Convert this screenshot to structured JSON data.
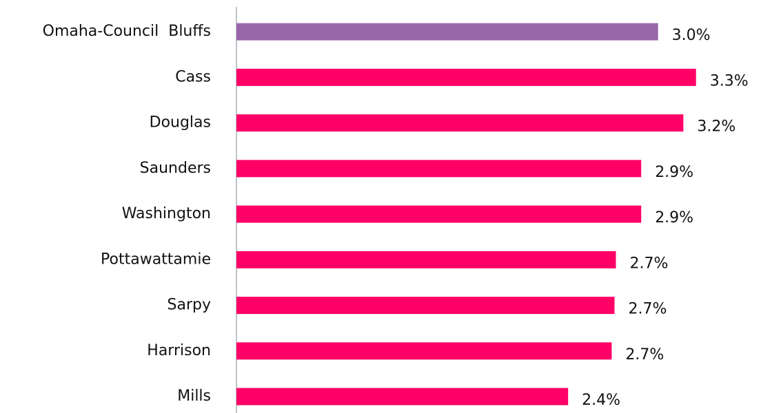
{
  "chart_data": {
    "type": "bar",
    "orientation": "horizontal",
    "categories": [
      "Omaha-Council  Bluffs",
      "Cass",
      "Douglas",
      "Saunders",
      "Washington",
      "Pottawattamie",
      "Sarpy",
      "Harrison",
      "Mills"
    ],
    "values": [
      3.0,
      3.27,
      3.18,
      2.88,
      2.88,
      2.7,
      2.69,
      2.67,
      2.36
    ],
    "value_labels": [
      "3.0%",
      "3.3%",
      "3.2%",
      "2.9%",
      "2.9%",
      "2.7%",
      "2.7%",
      "2.7%",
      "2.4%"
    ],
    "colors": [
      "#9966aa",
      "#ff0066",
      "#ff0066",
      "#ff0066",
      "#ff0066",
      "#ff0066",
      "#ff0066",
      "#ff0066",
      "#ff0066"
    ],
    "xlim": [
      0,
      3.6
    ]
  }
}
